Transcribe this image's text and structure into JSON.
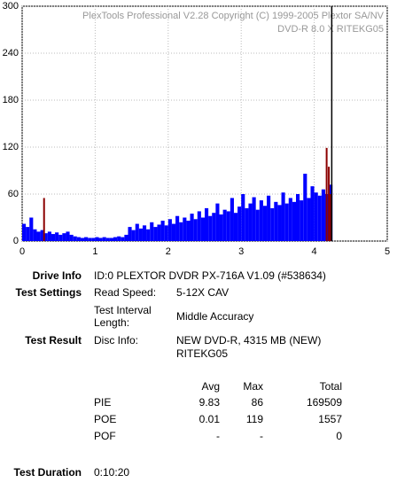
{
  "chart_data": {
    "type": "bar",
    "title": "PlexTools Professional V2.28 Copyright (C) 1999-2005 Plextor SA/NV",
    "subtitle": "DVD-R   8.0 X   RITEKG05",
    "xlim": [
      0,
      5
    ],
    "xticks": [
      0,
      1,
      2,
      3,
      4,
      5
    ],
    "ylim": [
      0,
      300
    ],
    "yticks": [
      0,
      60,
      120,
      180,
      240,
      300
    ],
    "grid": true,
    "bar_width": 0.05,
    "end_line_x": 4.24,
    "series": [
      {
        "color": "#0000ff",
        "x": [
          0,
          0.05,
          0.1,
          0.15,
          0.2,
          0.25,
          0.3,
          0.35,
          0.4,
          0.45,
          0.5,
          0.55,
          0.6,
          0.65,
          0.7,
          0.75,
          0.8,
          0.85,
          0.9,
          0.95,
          1,
          1.05,
          1.1,
          1.15,
          1.2,
          1.25,
          1.3,
          1.35,
          1.4,
          1.45,
          1.5,
          1.55,
          1.6,
          1.65,
          1.7,
          1.75,
          1.8,
          1.85,
          1.9,
          1.95,
          2,
          2.05,
          2.1,
          2.15,
          2.2,
          2.25,
          2.3,
          2.35,
          2.4,
          2.45,
          2.5,
          2.55,
          2.6,
          2.65,
          2.7,
          2.75,
          2.8,
          2.85,
          2.9,
          2.95,
          3,
          3.05,
          3.1,
          3.15,
          3.2,
          3.25,
          3.3,
          3.35,
          3.4,
          3.45,
          3.5,
          3.55,
          3.6,
          3.65,
          3.7,
          3.75,
          3.8,
          3.85,
          3.9,
          3.95,
          4,
          4.05,
          4.1,
          4.15,
          4.2
        ],
        "values": [
          22,
          18,
          30,
          15,
          12,
          14,
          10,
          12,
          9,
          11,
          8,
          10,
          12,
          8,
          6,
          5,
          4,
          5,
          4,
          4,
          5,
          4,
          5,
          4,
          4,
          5,
          6,
          5,
          8,
          18,
          14,
          22,
          16,
          20,
          15,
          24,
          18,
          21,
          26,
          20,
          28,
          22,
          32,
          24,
          30,
          26,
          35,
          28,
          38,
          30,
          42,
          32,
          36,
          48,
          34,
          40,
          38,
          55,
          36,
          44,
          60,
          42,
          48,
          56,
          40,
          52,
          45,
          58,
          42,
          50,
          46,
          62,
          48,
          55,
          50,
          60,
          52,
          86,
          55,
          70,
          62,
          58,
          66,
          60,
          72
        ]
      },
      {
        "color": "#8b0000",
        "x": [
          0.3,
          4.17,
          4.2,
          4.22
        ],
        "values": [
          55,
          119,
          95,
          60
        ]
      }
    ]
  },
  "info": {
    "drive_info": {
      "label": "Drive Info",
      "value": "ID:0 PLEXTOR DVDR PX-716A V1.09 (#538634)"
    },
    "test_settings": {
      "label": "Test Settings",
      "rows": [
        [
          "Read Speed:",
          "5-12X CAV"
        ],
        [
          "Test Interval Length:",
          "Middle Accuracy"
        ]
      ]
    },
    "test_result": {
      "label": "Test Result",
      "key": "Disc Info:",
      "value": "NEW DVD-R, 4315 MB (NEW) RITEKG05"
    },
    "table": {
      "headers": [
        "Avg",
        "Max",
        "Total"
      ],
      "rows": [
        [
          "PIE",
          "9.83",
          "86",
          "169509"
        ],
        [
          "POE",
          "0.01",
          "119",
          "1557"
        ],
        [
          "POF",
          "-",
          "-",
          "0"
        ]
      ]
    },
    "test_duration": {
      "label": "Test Duration",
      "value": "0:10:20"
    }
  }
}
